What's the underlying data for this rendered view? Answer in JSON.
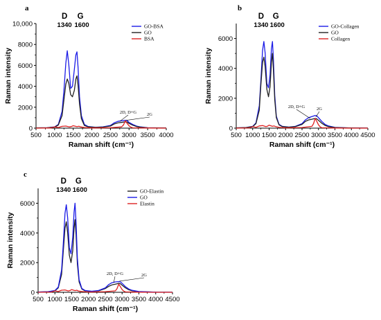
{
  "chart_data": [
    {
      "type": "line",
      "panel": "a",
      "xlabel": "Raman shift (cm⁻¹)",
      "ylabel": "Raman intensity",
      "xlim": [
        500,
        4000
      ],
      "ylim": [
        0,
        10000
      ],
      "x_ticks": [
        "500",
        "1000",
        "1500",
        "2000",
        "2500",
        "3000",
        "3500",
        "4000"
      ],
      "y_ticks": [
        "0",
        "2000",
        "4000",
        "6000",
        "8000",
        "10,000"
      ],
      "y_tick_values": [
        0,
        2000,
        4000,
        6000,
        8000,
        10000
      ],
      "peak_letters": [
        "D",
        "G"
      ],
      "peak_numbers": [
        "1340",
        "1600"
      ],
      "annotations": [
        "2D, D+G",
        "2G"
      ],
      "legend_position": "top-right",
      "series": [
        {
          "name": "GO-BSA",
          "color": "#1a1ae6",
          "x": [
            500,
            800,
            1000,
            1100,
            1200,
            1250,
            1300,
            1340,
            1380,
            1430,
            1480,
            1530,
            1570,
            1600,
            1630,
            1670,
            1720,
            1800,
            1900,
            2100,
            2300,
            2500,
            2600,
            2700,
            2800,
            2900,
            2950,
            3000,
            3100,
            3200,
            3300,
            3500,
            4000
          ],
          "y": [
            20,
            40,
            120,
            350,
            1600,
            3600,
            6200,
            7400,
            6100,
            3800,
            4000,
            5600,
            7000,
            7300,
            5800,
            3000,
            1200,
            350,
            150,
            80,
            120,
            250,
            500,
            650,
            700,
            750,
            720,
            550,
            350,
            200,
            120,
            40,
            10
          ]
        },
        {
          "name": "GO",
          "color": "#222222",
          "x": [
            500,
            800,
            1000,
            1100,
            1200,
            1250,
            1300,
            1340,
            1380,
            1430,
            1480,
            1530,
            1570,
            1600,
            1630,
            1670,
            1720,
            1800,
            1900,
            2100,
            2300,
            2500,
            2600,
            2700,
            2800,
            2900,
            2950,
            3000,
            3100,
            3200,
            3300,
            3500,
            4000
          ],
          "y": [
            20,
            40,
            100,
            300,
            1200,
            2700,
            4200,
            4700,
            4300,
            3200,
            3000,
            3600,
            4700,
            5000,
            4100,
            2300,
            900,
            250,
            120,
            70,
            100,
            200,
            400,
            500,
            550,
            600,
            580,
            450,
            280,
            150,
            90,
            30,
            10
          ]
        },
        {
          "name": "BSA",
          "color": "#dd2222",
          "x": [
            500,
            900,
            1000,
            1100,
            1200,
            1300,
            1400,
            1450,
            1500,
            1600,
            1650,
            1700,
            1800,
            2000,
            2500,
            2800,
            2850,
            2900,
            2950,
            3000,
            3050,
            3100,
            3500,
            4000
          ],
          "y": [
            0,
            20,
            120,
            60,
            170,
            200,
            120,
            150,
            230,
            140,
            180,
            120,
            60,
            20,
            40,
            120,
            300,
            700,
            450,
            220,
            90,
            30,
            10,
            0
          ]
        }
      ]
    },
    {
      "type": "line",
      "panel": "b",
      "xlabel": "Raman shift (cm⁻¹)",
      "ylabel": "Raman intensity",
      "xlim": [
        500,
        4500
      ],
      "ylim": [
        0,
        7000
      ],
      "x_ticks": [
        "500",
        "1000",
        "1500",
        "2000",
        "2500",
        "3000",
        "3500",
        "4000",
        "4500"
      ],
      "y_ticks": [
        "0",
        "2000",
        "4000",
        "6000"
      ],
      "y_tick_values": [
        0,
        2000,
        4000,
        6000
      ],
      "peak_letters": [
        "D",
        "G"
      ],
      "peak_numbers": [
        "1340",
        "1600"
      ],
      "annotations": [
        "2D, D+G",
        "2G"
      ],
      "legend_position": "top-right",
      "series": [
        {
          "name": "GO-Collagen",
          "color": "#1a1ae6",
          "x": [
            500,
            800,
            1000,
            1100,
            1200,
            1250,
            1300,
            1340,
            1380,
            1430,
            1480,
            1530,
            1570,
            1600,
            1630,
            1670,
            1720,
            1800,
            1900,
            2100,
            2300,
            2500,
            2600,
            2700,
            2800,
            2900,
            2950,
            3000,
            3100,
            3200,
            3300,
            3500,
            4000,
            4500
          ],
          "y": [
            20,
            40,
            120,
            350,
            1500,
            3200,
            5200,
            5800,
            5000,
            3000,
            2700,
            3600,
            5300,
            5800,
            4600,
            2200,
            800,
            250,
            120,
            70,
            120,
            300,
            550,
            700,
            780,
            850,
            820,
            700,
            450,
            250,
            150,
            50,
            10,
            5
          ]
        },
        {
          "name": "GO",
          "color": "#222222",
          "x": [
            500,
            800,
            1000,
            1100,
            1200,
            1250,
            1300,
            1340,
            1380,
            1430,
            1480,
            1530,
            1570,
            1600,
            1630,
            1670,
            1720,
            1800,
            1900,
            2100,
            2300,
            2500,
            2600,
            2700,
            2800,
            2900,
            2950,
            3000,
            3100,
            3200,
            3300,
            3500,
            4000,
            4500
          ],
          "y": [
            20,
            40,
            100,
            300,
            1200,
            2900,
            4400,
            4750,
            4100,
            2600,
            2100,
            2800,
            4400,
            5000,
            3900,
            1900,
            700,
            220,
            100,
            60,
            100,
            250,
            450,
            550,
            600,
            650,
            620,
            520,
            330,
            180,
            100,
            40,
            10,
            5
          ]
        },
        {
          "name": "Collagen",
          "color": "#dd2222",
          "x": [
            500,
            900,
            1000,
            1100,
            1200,
            1300,
            1400,
            1450,
            1500,
            1600,
            1650,
            1700,
            1800,
            2000,
            2500,
            2800,
            2850,
            2900,
            2950,
            3000,
            3050,
            3100,
            3500,
            4000,
            4500
          ],
          "y": [
            0,
            20,
            100,
            50,
            150,
            170,
            100,
            130,
            200,
            120,
            150,
            100,
            50,
            20,
            40,
            120,
            300,
            650,
            450,
            220,
            90,
            30,
            10,
            0,
            0
          ]
        }
      ]
    },
    {
      "type": "line",
      "panel": "c",
      "xlabel": "Raman shift (cm⁻¹)",
      "ylabel": "Raman intensity",
      "xlim": [
        500,
        4500
      ],
      "ylim": [
        0,
        7000
      ],
      "x_ticks": [
        "500",
        "1000",
        "1500",
        "2000",
        "2500",
        "3000",
        "3500",
        "4000",
        "4500"
      ],
      "y_ticks": [
        "0",
        "2000",
        "4000",
        "6000"
      ],
      "y_tick_values": [
        0,
        2000,
        4000,
        6000
      ],
      "peak_letters": [
        "D",
        "G"
      ],
      "peak_numbers": [
        "1340",
        "1600"
      ],
      "annotations": [
        "2D, D+G",
        "2G"
      ],
      "legend_position": "top-right",
      "series": [
        {
          "name": "GO-Elastin",
          "color": "#222222",
          "x": [
            500,
            800,
            1000,
            1100,
            1200,
            1250,
            1300,
            1340,
            1380,
            1430,
            1480,
            1530,
            1570,
            1600,
            1630,
            1670,
            1720,
            1800,
            1900,
            2100,
            2300,
            2500,
            2600,
            2700,
            2800,
            2900,
            2950,
            3000,
            3100,
            3200,
            3300,
            3500,
            4000,
            4500
          ],
          "y": [
            20,
            40,
            100,
            300,
            1200,
            2800,
            4300,
            4750,
            4000,
            2500,
            2000,
            2800,
            4300,
            4900,
            3900,
            1900,
            700,
            220,
            100,
            60,
            100,
            250,
            400,
            500,
            550,
            600,
            580,
            480,
            300,
            170,
            100,
            40,
            10,
            5
          ]
        },
        {
          "name": "GO",
          "color": "#1a1ae6",
          "x": [
            500,
            800,
            1000,
            1100,
            1200,
            1250,
            1300,
            1340,
            1380,
            1430,
            1480,
            1530,
            1570,
            1600,
            1630,
            1670,
            1720,
            1800,
            1900,
            2100,
            2300,
            2500,
            2600,
            2700,
            2800,
            2900,
            2950,
            3000,
            3100,
            3200,
            3300,
            3500,
            4000,
            4500
          ],
          "y": [
            20,
            40,
            120,
            350,
            1500,
            3300,
            5300,
            5900,
            5000,
            3000,
            2600,
            3700,
            5400,
            6000,
            4700,
            2300,
            850,
            260,
            120,
            70,
            120,
            300,
            520,
            650,
            700,
            720,
            700,
            600,
            380,
            220,
            130,
            50,
            10,
            5
          ]
        },
        {
          "name": "Elastin",
          "color": "#dd2222",
          "x": [
            500,
            900,
            1000,
            1100,
            1200,
            1300,
            1400,
            1450,
            1500,
            1600,
            1650,
            1700,
            1800,
            2000,
            2500,
            2800,
            2850,
            2900,
            2950,
            3000,
            3050,
            3100,
            3500,
            4000,
            4500
          ],
          "y": [
            0,
            20,
            100,
            50,
            140,
            160,
            90,
            120,
            180,
            110,
            140,
            90,
            50,
            20,
            40,
            100,
            250,
            550,
            380,
            180,
            80,
            30,
            10,
            0,
            0
          ]
        }
      ]
    }
  ]
}
